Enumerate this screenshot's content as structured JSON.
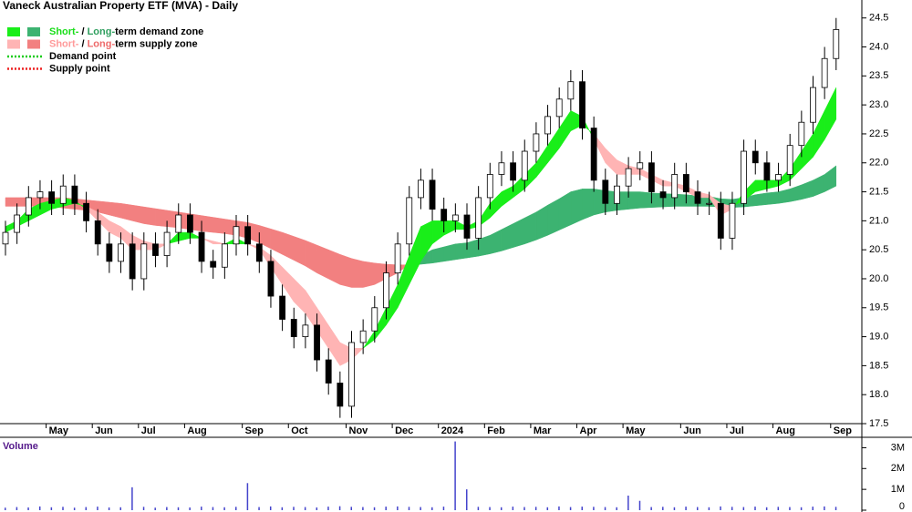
{
  "chart_data": {
    "type": "candlestick",
    "title": "Vaneck Australian Property ETF (MVA) - Daily",
    "categories": [
      null,
      null,
      null,
      null,
      "May",
      null,
      null,
      null,
      "Jun",
      null,
      null,
      null,
      "Jul",
      null,
      null,
      null,
      "Aug",
      null,
      null,
      null,
      null,
      "Sep",
      null,
      null,
      null,
      "Oct",
      null,
      null,
      null,
      null,
      "Nov",
      null,
      null,
      null,
      "Dec",
      null,
      null,
      null,
      "2024",
      null,
      null,
      null,
      "Feb",
      null,
      null,
      null,
      "Mar",
      null,
      null,
      null,
      "Apr",
      null,
      null,
      null,
      "May",
      null,
      null,
      null,
      null,
      "Jun",
      null,
      null,
      null,
      "Jul",
      null,
      null,
      null,
      "Aug",
      null,
      null,
      null,
      null,
      "Sep"
    ],
    "open": [
      20.6,
      20.8,
      21.1,
      21.4,
      21.5,
      21.3,
      21.6,
      21.3,
      21.0,
      20.6,
      20.3,
      20.6,
      20.0,
      20.6,
      20.4,
      20.8,
      21.1,
      20.8,
      20.3,
      20.2,
      20.6,
      20.9,
      20.6,
      20.3,
      19.7,
      19.3,
      19.0,
      19.2,
      18.6,
      18.2,
      17.8,
      18.9,
      19.1,
      19.5,
      20.1,
      20.6,
      21.4,
      21.7,
      21.2,
      21.0,
      21.1,
      20.7,
      21.4,
      21.8,
      22.0,
      21.7,
      22.2,
      22.5,
      22.8,
      23.1,
      23.4,
      22.6,
      21.7,
      21.3,
      21.6,
      21.9,
      22.0,
      21.5,
      21.4,
      21.8,
      21.5,
      21.3,
      21.3,
      20.7,
      21.3,
      22.2,
      22.0,
      21.7,
      21.8,
      22.3,
      22.7,
      23.3,
      23.8
    ],
    "high": [
      21.0,
      21.3,
      21.6,
      21.7,
      21.7,
      21.8,
      21.8,
      21.5,
      21.2,
      20.8,
      20.8,
      20.8,
      20.8,
      20.8,
      21.0,
      21.3,
      21.3,
      21.0,
      20.5,
      20.8,
      21.1,
      21.1,
      20.8,
      20.5,
      19.9,
      19.5,
      19.4,
      19.4,
      18.8,
      18.4,
      19.1,
      19.3,
      19.7,
      20.3,
      20.8,
      21.6,
      21.9,
      21.9,
      21.4,
      21.3,
      21.3,
      21.6,
      22.0,
      22.2,
      22.2,
      22.4,
      22.7,
      23.0,
      23.3,
      23.6,
      23.6,
      22.8,
      21.9,
      21.8,
      22.1,
      22.2,
      22.2,
      21.7,
      22.0,
      22.0,
      21.7,
      21.5,
      21.5,
      21.5,
      22.4,
      22.4,
      22.2,
      22.0,
      22.5,
      22.9,
      23.5,
      24.0,
      24.5
    ],
    "low": [
      20.4,
      20.6,
      20.9,
      21.2,
      21.1,
      21.1,
      21.1,
      20.8,
      20.4,
      20.1,
      20.1,
      19.8,
      19.8,
      20.2,
      20.2,
      20.6,
      20.6,
      20.1,
      20.0,
      20.0,
      20.4,
      20.4,
      20.1,
      19.5,
      19.1,
      18.8,
      18.8,
      18.4,
      18.0,
      17.6,
      17.6,
      18.7,
      18.9,
      19.3,
      19.9,
      20.4,
      21.2,
      21.0,
      20.8,
      20.8,
      20.5,
      20.5,
      21.2,
      21.6,
      21.5,
      21.5,
      22.0,
      22.3,
      22.6,
      22.9,
      22.4,
      21.5,
      21.1,
      21.1,
      21.4,
      21.7,
      21.3,
      21.2,
      21.2,
      21.3,
      21.1,
      21.1,
      20.5,
      20.5,
      21.1,
      21.8,
      21.5,
      21.5,
      21.6,
      22.1,
      22.5,
      23.1,
      23.6
    ],
    "close": [
      20.8,
      21.1,
      21.4,
      21.5,
      21.3,
      21.6,
      21.3,
      21.0,
      20.6,
      20.3,
      20.6,
      20.0,
      20.6,
      20.4,
      20.8,
      21.1,
      20.8,
      20.3,
      20.2,
      20.6,
      20.9,
      20.6,
      20.3,
      19.7,
      19.3,
      19.0,
      19.2,
      18.6,
      18.2,
      17.8,
      18.9,
      19.1,
      19.5,
      20.1,
      20.6,
      21.4,
      21.7,
      21.2,
      21.0,
      21.1,
      20.7,
      21.4,
      21.8,
      22.0,
      21.7,
      22.2,
      22.5,
      22.8,
      23.1,
      23.4,
      22.6,
      21.7,
      21.3,
      21.6,
      21.9,
      22.0,
      21.5,
      21.4,
      21.8,
      21.5,
      21.3,
      21.3,
      20.7,
      21.3,
      22.2,
      22.0,
      21.7,
      21.8,
      22.3,
      22.7,
      23.3,
      23.8,
      24.3
    ],
    "zones": [
      {
        "fast": [
          21.25,
          21.25,
          21.25,
          21.25,
          21.25,
          21.22,
          21.2,
          21.18,
          21.15,
          21.1,
          21.05,
          21.0,
          20.95,
          20.92,
          20.9,
          20.88,
          20.85,
          20.82,
          20.8,
          20.78,
          20.75,
          20.7,
          20.62,
          20.52,
          20.42,
          20.32,
          20.22,
          20.1,
          20.0,
          19.9,
          19.85,
          19.85,
          19.9,
          20.0,
          20.1,
          20.25,
          20.4,
          20.5,
          20.55,
          20.6,
          20.62,
          20.68,
          20.75,
          20.85,
          20.95,
          21.05,
          21.15,
          21.27,
          21.38,
          21.5,
          21.55,
          21.55,
          21.52,
          21.5,
          21.5,
          21.5,
          21.48,
          21.47,
          21.46,
          21.45,
          21.43,
          21.42,
          21.38,
          21.37,
          21.4,
          21.45,
          21.48,
          21.5,
          21.55,
          21.62,
          21.7,
          21.8,
          21.95
        ],
        "slow": [
          21.4,
          21.4,
          21.4,
          21.4,
          21.4,
          21.4,
          21.38,
          21.36,
          21.34,
          21.32,
          21.3,
          21.27,
          21.24,
          21.21,
          21.18,
          21.15,
          21.12,
          21.09,
          21.06,
          21.03,
          21.0,
          20.97,
          20.92,
          20.86,
          20.8,
          20.73,
          20.66,
          20.58,
          20.5,
          20.42,
          20.35,
          20.3,
          20.27,
          20.25,
          20.24,
          20.24,
          20.25,
          20.27,
          20.3,
          20.33,
          20.36,
          20.39,
          20.43,
          20.48,
          20.54,
          20.6,
          20.67,
          20.75,
          20.84,
          20.93,
          21.02,
          21.1,
          21.15,
          21.18,
          21.2,
          21.22,
          21.23,
          21.24,
          21.25,
          21.25,
          21.25,
          21.25,
          21.24,
          21.23,
          21.24,
          21.26,
          21.28,
          21.3,
          21.33,
          21.37,
          21.42,
          21.5,
          21.6
        ],
        "demand_color": "#3cb371",
        "supply_color": "#f28080"
      },
      {
        "fast": [
          20.9,
          21.0,
          21.2,
          21.3,
          21.35,
          21.4,
          21.35,
          21.2,
          21.0,
          20.8,
          20.7,
          20.5,
          20.5,
          20.5,
          20.6,
          20.8,
          20.8,
          20.7,
          20.6,
          20.6,
          20.7,
          20.6,
          20.5,
          20.2,
          19.9,
          19.6,
          19.4,
          19.1,
          18.8,
          18.5,
          18.6,
          18.8,
          19.1,
          19.5,
          19.9,
          20.4,
          20.9,
          21.0,
          21.0,
          21.0,
          20.9,
          21.0,
          21.3,
          21.5,
          21.6,
          21.8,
          22.0,
          22.3,
          22.6,
          22.9,
          22.8,
          22.4,
          22.0,
          21.8,
          21.8,
          21.8,
          21.7,
          21.6,
          21.6,
          21.5,
          21.4,
          21.4,
          21.1,
          21.2,
          21.5,
          21.7,
          21.7,
          21.7,
          21.9,
          22.2,
          22.5,
          22.9,
          23.3
        ],
        "slow": [
          20.8,
          20.9,
          21.0,
          21.1,
          21.2,
          21.25,
          21.3,
          21.25,
          21.15,
          21.0,
          20.9,
          20.75,
          20.65,
          20.6,
          20.6,
          20.65,
          20.7,
          20.7,
          20.65,
          20.6,
          20.6,
          20.6,
          20.55,
          20.4,
          20.2,
          20.0,
          19.8,
          19.5,
          19.2,
          18.9,
          18.8,
          18.8,
          18.95,
          19.2,
          19.5,
          19.9,
          20.3,
          20.6,
          20.75,
          20.85,
          20.85,
          20.9,
          21.05,
          21.25,
          21.4,
          21.55,
          21.75,
          22.0,
          22.25,
          22.55,
          22.65,
          22.5,
          22.25,
          22.05,
          21.95,
          21.9,
          21.8,
          21.7,
          21.65,
          21.6,
          21.5,
          21.45,
          21.3,
          21.25,
          21.35,
          21.5,
          21.55,
          21.6,
          21.7,
          21.9,
          22.1,
          22.4,
          22.75
        ],
        "demand_color": "#19ee19",
        "supply_color": "#ffb4b4"
      }
    ],
    "ylim": [
      17.5,
      24.81
    ],
    "yticks": [
      {
        "value": 17.5,
        "label": "17.5"
      },
      {
        "value": 18,
        "label": "18.0"
      },
      18.5,
      {
        "value": 19,
        "label": "19.0"
      },
      19.5,
      {
        "value": 20,
        "label": "20.0"
      },
      20.5,
      {
        "value": 21,
        "label": "21.0"
      },
      21.5,
      {
        "value": 22,
        "label": "22.0"
      },
      22.5,
      {
        "value": 23,
        "label": "23.0"
      },
      23.5,
      {
        "value": 24,
        "label": "24.0"
      },
      24.5
    ],
    "legend": [
      {
        "parts": [
          {
            "text": "Short-",
            "color": "#19dd19"
          },
          {
            "text": " / "
          },
          {
            "text": "Long-",
            "color": "#2e9e5e"
          },
          {
            "text": "term demand zone"
          }
        ],
        "zone_swatches": true,
        "kind": "demand"
      },
      {
        "parts": [
          {
            "text": "Short-",
            "color": "#ff9a9a"
          },
          {
            "text": " / "
          },
          {
            "text": "Long-",
            "color": "#ee6a6a"
          },
          {
            "text": "term supply zone"
          }
        ],
        "zone_swatches": true,
        "kind": "supply"
      },
      {
        "parts": [
          {
            "text": "Demand point"
          }
        ],
        "line_color": "#19cc19"
      },
      {
        "parts": [
          {
            "text": "Supply point"
          }
        ],
        "line_color": "#ee2222"
      }
    ],
    "volume": {
      "label": "Volume",
      "color": "#4444cc",
      "values": [
        120000,
        150000,
        130000,
        180000,
        140000,
        160000,
        120000,
        150000,
        170000,
        130000,
        140000,
        1100000,
        160000,
        120000,
        150000,
        140000,
        130000,
        170000,
        150000,
        140000,
        160000,
        1300000,
        150000,
        180000,
        140000,
        160000,
        150000,
        130000,
        170000,
        190000,
        160000,
        150000,
        140000,
        170000,
        180000,
        160000,
        150000,
        140000,
        170000,
        3300000,
        1000000,
        160000,
        150000,
        140000,
        170000,
        150000,
        160000,
        140000,
        180000,
        150000,
        170000,
        160000,
        150000,
        140000,
        700000,
        450000,
        150000,
        160000,
        140000,
        170000,
        150000,
        140000,
        180000,
        160000,
        150000,
        170000,
        140000,
        160000,
        150000,
        140000,
        170000,
        180000,
        160000
      ],
      "ylim": [
        0,
        3500000
      ],
      "yticks": [
        0,
        {
          "value": 1000000,
          "label": "1M"
        },
        {
          "value": 2000000,
          "label": "2M"
        },
        {
          "value": 3000000,
          "label": "3M"
        }
      ]
    }
  }
}
